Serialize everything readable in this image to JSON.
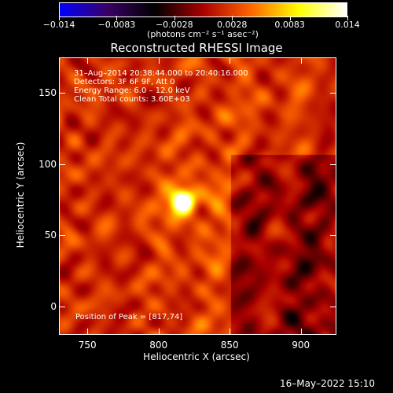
{
  "chart_data": {
    "type": "heatmap",
    "title": "Reconstructed RHESSI Image",
    "xlabel": "Heliocentric X (arcsec)",
    "ylabel": "Heliocentric Y (arcsec)",
    "xlim": [
      730,
      925
    ],
    "ylim": [
      -20,
      175
    ],
    "x_ticks": [
      "750",
      "800",
      "850",
      "900"
    ],
    "y_ticks": [
      "0",
      "50",
      "100",
      "150"
    ],
    "colorbar": {
      "range": [
        -0.014,
        0.014
      ],
      "tick_labels": [
        "−0.014",
        "−0.0083",
        "−0.0028",
        "0.0028",
        "0.0083",
        "0.014"
      ],
      "units": "(photons cm⁻² s⁻¹ asec⁻²)",
      "colors": [
        "#0000ff",
        "#3a0066",
        "#000000",
        "#aa0000",
        "#ff6600",
        "#ffff00",
        "#ffffff"
      ]
    },
    "annotations": {
      "time": "31–Aug–2014 20:38:44.000 to 20:40:16.000",
      "detectors": "Detectors: 3F 6F 9F, Att 0",
      "energy": "Energy Range: 6.0 – 12.0 keV",
      "clean": "Clean    Total counts: 3.60E+03",
      "peak": "Position of Peak = [817,74]"
    },
    "peak_position": [
      817,
      74
    ]
  },
  "footer": "16–May–2022 15:10"
}
